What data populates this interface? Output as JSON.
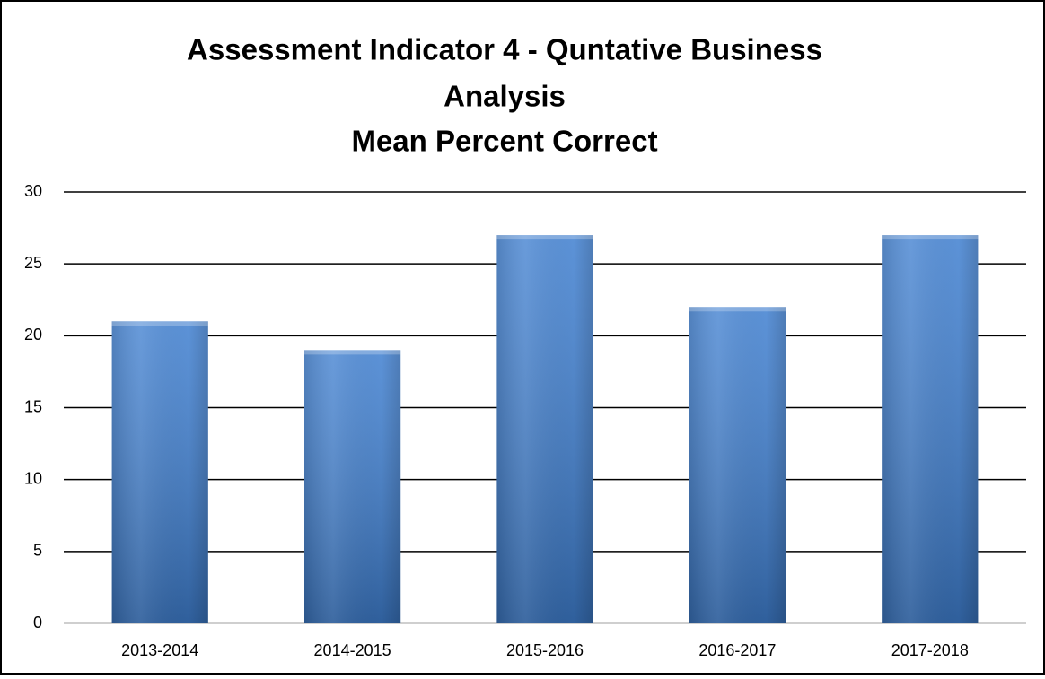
{
  "chart_data": {
    "type": "bar",
    "title": [
      "Assessment Indicator 4 - Quntative Business",
      "Analysis",
      "Mean Percent Correct"
    ],
    "categories": [
      "2013-2014",
      "2014-2015",
      "2015-2016",
      "2016-2017",
      "2017-2018"
    ],
    "values": [
      21,
      19,
      27,
      22,
      27
    ],
    "color": "#3f7fd0",
    "ylim": [
      0,
      30
    ],
    "yticks": [
      0,
      5,
      10,
      15,
      20,
      25,
      30
    ],
    "grid": true
  }
}
